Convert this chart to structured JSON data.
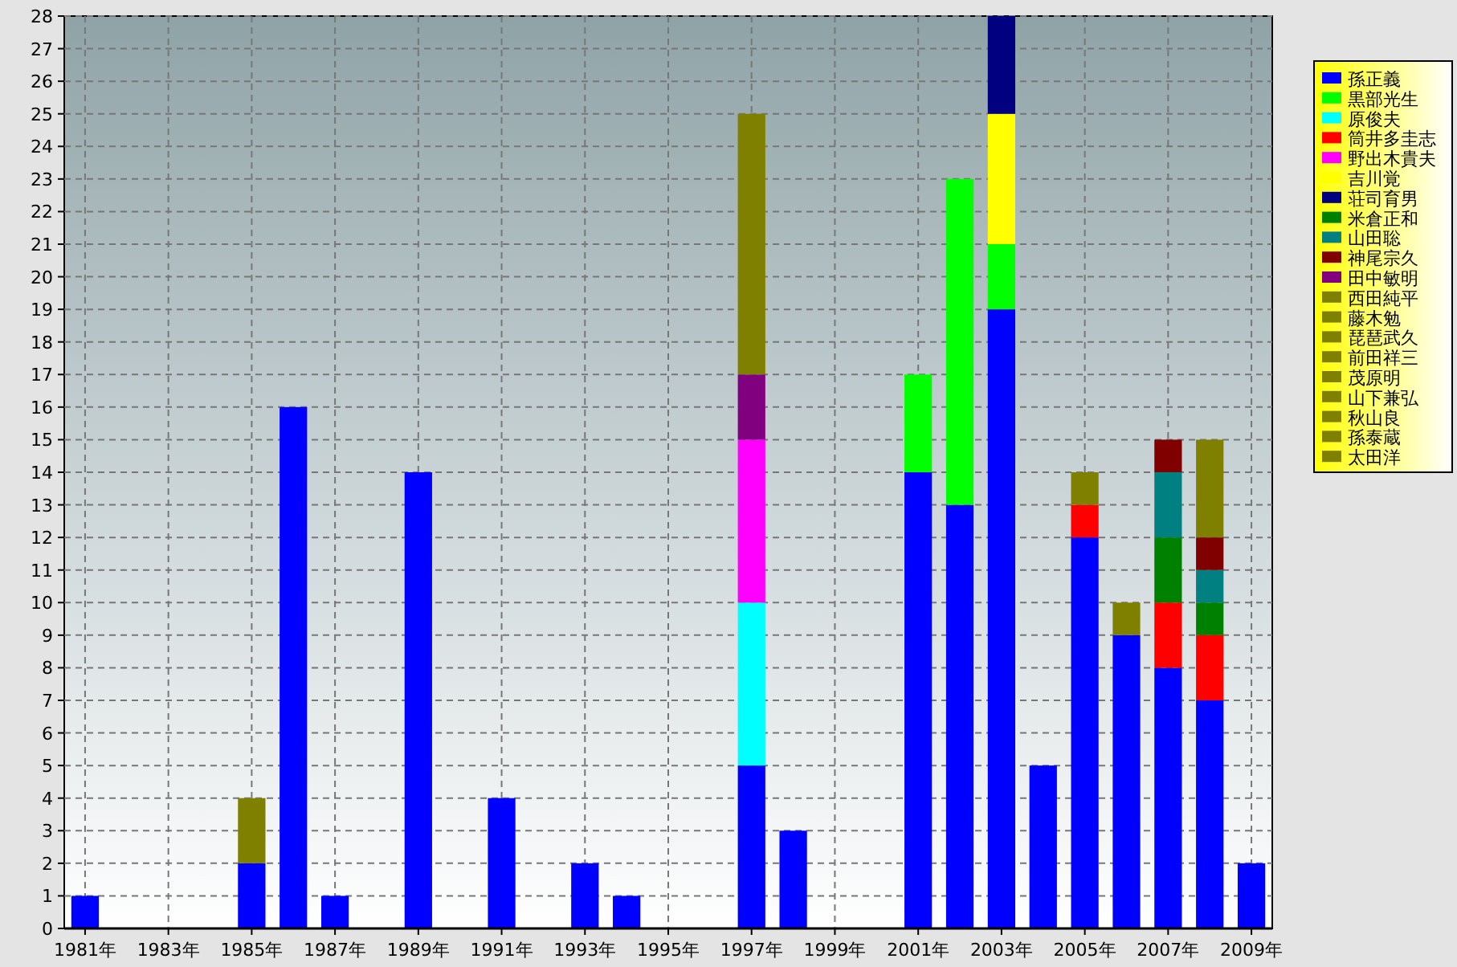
{
  "chart_data": {
    "type": "bar",
    "stacked": true,
    "grid": true,
    "legend": "right",
    "categories": [
      "1981年",
      null,
      "1983年",
      null,
      "1985年",
      null,
      "1987年",
      null,
      "1989年",
      null,
      "1991年",
      null,
      "1993年",
      null,
      "1995年",
      null,
      "1997年",
      null,
      "1999年",
      null,
      "2001年",
      null,
      "2003年",
      null,
      "2005年",
      null,
      "2007年",
      null,
      "2009年"
    ],
    "ylim": [
      0,
      28
    ],
    "yticks": [
      0,
      1,
      2,
      3,
      4,
      5,
      6,
      7,
      8,
      9,
      10,
      11,
      12,
      13,
      14,
      15,
      16,
      17,
      18,
      19,
      20,
      21,
      22,
      23,
      24,
      25,
      26,
      27,
      28
    ],
    "series": [
      {
        "name": "孫正義",
        "color": "#0000ff",
        "values": [
          1,
          0,
          0,
          0,
          2,
          16,
          1,
          0,
          14,
          0,
          4,
          0,
          2,
          1,
          0,
          0,
          5,
          3,
          0,
          0,
          14,
          13,
          19,
          5,
          12,
          9,
          8,
          7,
          2
        ]
      },
      {
        "name": "黒部光生",
        "color": "#00ff00",
        "values": [
          0,
          0,
          0,
          0,
          0,
          0,
          0,
          0,
          0,
          0,
          0,
          0,
          0,
          0,
          0,
          0,
          0,
          0,
          0,
          0,
          3,
          10,
          2,
          0,
          0,
          0,
          0,
          0,
          0
        ]
      },
      {
        "name": "原俊夫",
        "color": "#00ffff",
        "values": [
          0,
          0,
          0,
          0,
          0,
          0,
          0,
          0,
          0,
          0,
          0,
          0,
          0,
          0,
          0,
          0,
          5,
          0,
          0,
          0,
          0,
          0,
          0,
          0,
          0,
          0,
          0,
          0,
          0
        ]
      },
      {
        "name": "筒井多圭志",
        "color": "#ff0000",
        "values": [
          0,
          0,
          0,
          0,
          0,
          0,
          0,
          0,
          0,
          0,
          0,
          0,
          0,
          0,
          0,
          0,
          0,
          0,
          0,
          0,
          0,
          0,
          0,
          0,
          1,
          0,
          2,
          2,
          0
        ]
      },
      {
        "name": "野出木貴夫",
        "color": "#ff00ff",
        "values": [
          0,
          0,
          0,
          0,
          0,
          0,
          0,
          0,
          0,
          0,
          0,
          0,
          0,
          0,
          0,
          0,
          5,
          0,
          0,
          0,
          0,
          0,
          0,
          0,
          0,
          0,
          0,
          0,
          0
        ]
      },
      {
        "name": "吉川覚",
        "color": "#ffff00",
        "values": [
          0,
          0,
          0,
          0,
          0,
          0,
          0,
          0,
          0,
          0,
          0,
          0,
          0,
          0,
          0,
          0,
          0,
          0,
          0,
          0,
          0,
          0,
          4,
          0,
          0,
          0,
          0,
          0,
          0
        ]
      },
      {
        "name": "荘司育男",
        "color": "#000080",
        "values": [
          0,
          0,
          0,
          0,
          0,
          0,
          0,
          0,
          0,
          0,
          0,
          0,
          0,
          0,
          0,
          0,
          0,
          0,
          0,
          0,
          0,
          0,
          3,
          0,
          0,
          0,
          0,
          0,
          0
        ]
      },
      {
        "name": "米倉正和",
        "color": "#008000",
        "values": [
          0,
          0,
          0,
          0,
          0,
          0,
          0,
          0,
          0,
          0,
          0,
          0,
          0,
          0,
          0,
          0,
          0,
          0,
          0,
          0,
          0,
          0,
          0,
          0,
          0,
          0,
          2,
          1,
          0
        ]
      },
      {
        "name": "山田聡",
        "color": "#008080",
        "values": [
          0,
          0,
          0,
          0,
          0,
          0,
          0,
          0,
          0,
          0,
          0,
          0,
          0,
          0,
          0,
          0,
          0,
          0,
          0,
          0,
          0,
          0,
          0,
          0,
          0,
          0,
          2,
          1,
          0
        ]
      },
      {
        "name": "神尾宗久",
        "color": "#800000",
        "values": [
          0,
          0,
          0,
          0,
          0,
          0,
          0,
          0,
          0,
          0,
          0,
          0,
          0,
          0,
          0,
          0,
          0,
          0,
          0,
          0,
          0,
          0,
          0,
          0,
          0,
          0,
          1,
          1,
          0
        ]
      },
      {
        "name": "田中敏明",
        "color": "#800080",
        "values": [
          0,
          0,
          0,
          0,
          0,
          0,
          0,
          0,
          0,
          0,
          0,
          0,
          0,
          0,
          0,
          0,
          2,
          0,
          0,
          0,
          0,
          0,
          0,
          0,
          0,
          0,
          0,
          0,
          0
        ]
      },
      {
        "name": "西田純平",
        "color": "#808000",
        "values": [
          0,
          0,
          0,
          0,
          2,
          0,
          0,
          0,
          0,
          0,
          0,
          0,
          0,
          0,
          0,
          0,
          0,
          0,
          0,
          0,
          0,
          0,
          0,
          0,
          0,
          0,
          0,
          0,
          0
        ]
      },
      {
        "name": "藤木勉",
        "color": "#808000",
        "values": [
          0,
          0,
          0,
          0,
          0,
          0,
          0,
          0,
          0,
          0,
          0,
          0,
          0,
          0,
          0,
          0,
          8,
          0,
          0,
          0,
          0,
          0,
          0,
          0,
          0,
          0,
          0,
          0,
          0
        ]
      },
      {
        "name": "琵琶武久",
        "color": "#808000",
        "values": [
          0,
          0,
          0,
          0,
          0,
          0,
          0,
          0,
          0,
          0,
          0,
          0,
          0,
          0,
          0,
          0,
          0,
          0,
          0,
          0,
          0,
          0,
          0,
          0,
          1,
          0,
          0,
          0,
          0
        ]
      },
      {
        "name": "前田祥三",
        "color": "#808000",
        "values": [
          0,
          0,
          0,
          0,
          0,
          0,
          0,
          0,
          0,
          0,
          0,
          0,
          0,
          0,
          0,
          0,
          0,
          0,
          0,
          0,
          0,
          0,
          0,
          0,
          0,
          1,
          0,
          0,
          0
        ]
      },
      {
        "name": "茂原明",
        "color": "#808000",
        "values": [
          0,
          0,
          0,
          0,
          0,
          0,
          0,
          0,
          0,
          0,
          0,
          0,
          0,
          0,
          0,
          0,
          0,
          0,
          0,
          0,
          0,
          0,
          0,
          0,
          0,
          0,
          0,
          3,
          0
        ]
      },
      {
        "name": "山下兼弘",
        "color": "#808000",
        "values": [
          0,
          0,
          0,
          0,
          0,
          0,
          0,
          0,
          0,
          0,
          0,
          0,
          0,
          0,
          0,
          0,
          0,
          0,
          0,
          0,
          0,
          0,
          0,
          0,
          0,
          0,
          0,
          0,
          0
        ]
      },
      {
        "name": "秋山良",
        "color": "#808000",
        "values": [
          0,
          0,
          0,
          0,
          0,
          0,
          0,
          0,
          0,
          0,
          0,
          0,
          0,
          0,
          0,
          0,
          0,
          0,
          0,
          0,
          0,
          0,
          0,
          0,
          0,
          0,
          0,
          0,
          0
        ]
      },
      {
        "name": "孫泰蔵",
        "color": "#808000",
        "values": [
          0,
          0,
          0,
          0,
          0,
          0,
          0,
          0,
          0,
          0,
          0,
          0,
          0,
          0,
          0,
          0,
          0,
          0,
          0,
          0,
          0,
          0,
          0,
          0,
          0,
          0,
          0,
          0,
          0
        ]
      },
      {
        "name": "太田洋",
        "color": "#808000",
        "values": [
          0,
          0,
          0,
          0,
          0,
          0,
          0,
          0,
          0,
          0,
          0,
          0,
          0,
          0,
          0,
          0,
          0,
          0,
          0,
          0,
          0,
          0,
          0,
          0,
          0,
          0,
          0,
          0,
          0
        ]
      }
    ]
  }
}
